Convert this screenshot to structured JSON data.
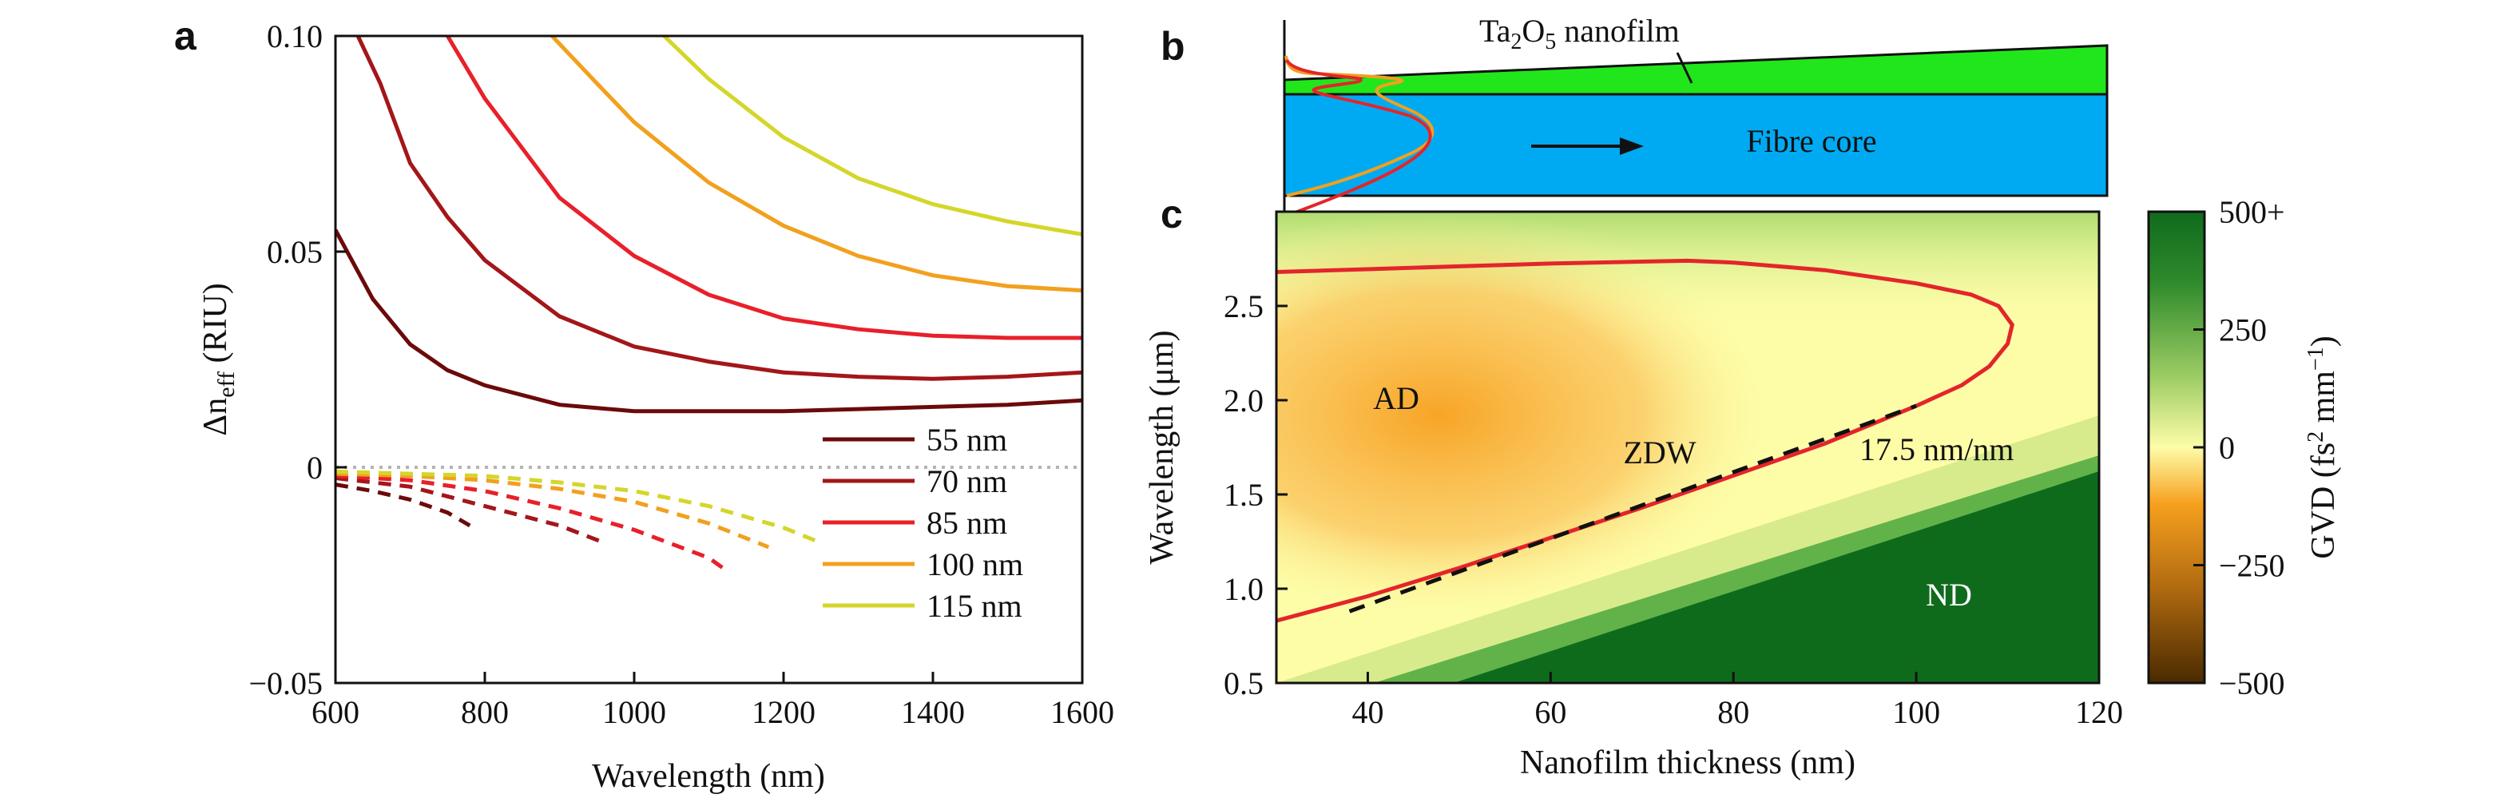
{
  "panels": {
    "a": "a",
    "b": "b",
    "c": "c"
  },
  "colors": {
    "c55": "#6b0a0a",
    "c70": "#a3161a",
    "c85": "#e8202a",
    "c100": "#f2a01e",
    "c115": "#d4d62a",
    "zero_line": "#b4b4b4",
    "nanofilm": "#22e61c",
    "fibre_core": "#00aaf2",
    "zdw": "#e3252b",
    "fit_line": "#111111",
    "gvd_positive": "#0f6b1c",
    "gvd_zero": "#fdfda8",
    "gvd_negative": "#f7a01f"
  },
  "chart_data": [
    {
      "id": "a",
      "type": "line",
      "xlabel": "Wavelength (nm)",
      "ylabel_main": "Δn",
      "ylabel_sub": "eff",
      "ylabel_tail": " (RIU)",
      "xlim": [
        600,
        1600
      ],
      "ylim": [
        -0.05,
        0.1
      ],
      "xticks": [
        "600",
        "800",
        "1000",
        "1200",
        "1400",
        "1600"
      ],
      "xtick_values": [
        600,
        800,
        1000,
        1200,
        1400,
        1600
      ],
      "yticks": [
        "−0.05",
        "0",
        "0.05",
        "0.10"
      ],
      "ytick_values": [
        -0.05,
        0,
        0.05,
        0.1
      ],
      "zero_line": true,
      "grid": false,
      "legend_position": "bottom-right",
      "series": [
        {
          "name": "55 nm",
          "color_key": "c55",
          "solid": [
            [
              600,
              0.055
            ],
            [
              650,
              0.039
            ],
            [
              700,
              0.0285
            ],
            [
              750,
              0.0225
            ],
            [
              800,
              0.019
            ],
            [
              900,
              0.0145
            ],
            [
              1000,
              0.013
            ],
            [
              1100,
              0.013
            ],
            [
              1200,
              0.013
            ],
            [
              1300,
              0.0135
            ],
            [
              1400,
              0.014
            ],
            [
              1500,
              0.0145
            ],
            [
              1600,
              0.0155
            ]
          ],
          "dashed": [
            [
              600,
              -0.004
            ],
            [
              650,
              -0.0055
            ],
            [
              700,
              -0.0075
            ],
            [
              750,
              -0.0105
            ],
            [
              780,
              -0.0135
            ]
          ]
        },
        {
          "name": "70 nm",
          "color_key": "c70",
          "solid": [
            [
              630,
              0.1
            ],
            [
              660,
              0.089
            ],
            [
              700,
              0.0705
            ],
            [
              750,
              0.058
            ],
            [
              800,
              0.048
            ],
            [
              900,
              0.035
            ],
            [
              1000,
              0.028
            ],
            [
              1100,
              0.0245
            ],
            [
              1200,
              0.022
            ],
            [
              1300,
              0.021
            ],
            [
              1400,
              0.0205
            ],
            [
              1500,
              0.021
            ],
            [
              1600,
              0.022
            ]
          ],
          "dashed": [
            [
              600,
              -0.0025
            ],
            [
              700,
              -0.0045
            ],
            [
              800,
              -0.009
            ],
            [
              900,
              -0.0135
            ],
            [
              960,
              -0.0175
            ]
          ]
        },
        {
          "name": "85 nm",
          "color_key": "c85",
          "solid": [
            [
              750,
              0.1
            ],
            [
              800,
              0.0855
            ],
            [
              900,
              0.0625
            ],
            [
              1000,
              0.049
            ],
            [
              1100,
              0.04
            ],
            [
              1200,
              0.0345
            ],
            [
              1300,
              0.032
            ],
            [
              1400,
              0.0305
            ],
            [
              1500,
              0.03
            ],
            [
              1600,
              0.03
            ]
          ],
          "dashed": [
            [
              600,
              -0.002
            ],
            [
              700,
              -0.003
            ],
            [
              800,
              -0.0055
            ],
            [
              900,
              -0.0095
            ],
            [
              1000,
              -0.0145
            ],
            [
              1100,
              -0.021
            ],
            [
              1120,
              -0.0235
            ]
          ]
        },
        {
          "name": "100 nm",
          "color_key": "c100",
          "solid": [
            [
              890,
              0.1
            ],
            [
              950,
              0.089
            ],
            [
              1000,
              0.08
            ],
            [
              1100,
              0.066
            ],
            [
              1200,
              0.056
            ],
            [
              1300,
              0.049
            ],
            [
              1400,
              0.0445
            ],
            [
              1500,
              0.042
            ],
            [
              1600,
              0.041
            ]
          ],
          "dashed": [
            [
              600,
              -0.0015
            ],
            [
              700,
              -0.002
            ],
            [
              800,
              -0.003
            ],
            [
              900,
              -0.005
            ],
            [
              1000,
              -0.008
            ],
            [
              1100,
              -0.013
            ],
            [
              1180,
              -0.0185
            ]
          ]
        },
        {
          "name": "115 nm",
          "color_key": "c115",
          "solid": [
            [
              1040,
              0.1
            ],
            [
              1100,
              0.09
            ],
            [
              1200,
              0.0765
            ],
            [
              1300,
              0.067
            ],
            [
              1400,
              0.061
            ],
            [
              1500,
              0.057
            ],
            [
              1600,
              0.054
            ]
          ],
          "dashed": [
            [
              600,
              -0.001
            ],
            [
              700,
              -0.0015
            ],
            [
              800,
              -0.002
            ],
            [
              900,
              -0.0035
            ],
            [
              1000,
              -0.0055
            ],
            [
              1100,
              -0.009
            ],
            [
              1200,
              -0.014
            ],
            [
              1250,
              -0.0175
            ]
          ]
        }
      ]
    },
    {
      "id": "b",
      "type": "diagram",
      "nanofilm_label": "nanofilm",
      "nanofilm_formula_a": "Ta",
      "nanofilm_formula_sub1": "2",
      "nanofilm_formula_b": "O",
      "nanofilm_formula_sub2": "5",
      "core_label": "Fibre core"
    },
    {
      "id": "c",
      "type": "heatmap",
      "xlabel": "Nanofilm thickness (nm)",
      "ylabel": "Wavelength (μm)",
      "xlim": [
        30,
        120
      ],
      "ylim": [
        0.5,
        3.0
      ],
      "xticks": [
        "40",
        "60",
        "80",
        "100",
        "120"
      ],
      "xtick_values": [
        40,
        60,
        80,
        100,
        120
      ],
      "yticks": [
        "0.5",
        "1.0",
        "1.5",
        "2.0",
        "2.5"
      ],
      "ytick_values": [
        0.5,
        1.0,
        1.5,
        2.0,
        2.5
      ],
      "colorbar_label_main": "GVD (fs",
      "colorbar_label_sup1": "2",
      "colorbar_label_mid": " mm",
      "colorbar_label_sup2": "−1",
      "colorbar_label_end": ")",
      "colorbar_ticks": [
        "500+",
        "250",
        "0",
        "−250",
        "−500"
      ],
      "colorbar_tick_values": [
        500,
        250,
        0,
        -250,
        -500
      ],
      "zdw_label": "ZDW",
      "ad_label": "AD",
      "nd_label": "ND",
      "slope_label": "17.5 nm/nm",
      "zdw_curve": [
        [
          30,
          0.83
        ],
        [
          40,
          0.96
        ],
        [
          50,
          1.11
        ],
        [
          60,
          1.27
        ],
        [
          70,
          1.43
        ],
        [
          80,
          1.6
        ],
        [
          90,
          1.77
        ],
        [
          100,
          1.97
        ],
        [
          105,
          2.08
        ],
        [
          108,
          2.18
        ],
        [
          110,
          2.3
        ],
        [
          110.5,
          2.4
        ],
        [
          109,
          2.5
        ],
        [
          106,
          2.56
        ],
        [
          100,
          2.62
        ],
        [
          90,
          2.69
        ],
        [
          80,
          2.73
        ],
        [
          75,
          2.74
        ],
        [
          70,
          2.735
        ],
        [
          60,
          2.725
        ],
        [
          50,
          2.71
        ],
        [
          40,
          2.695
        ],
        [
          30,
          2.68
        ]
      ],
      "fit_line": [
        [
          38,
          0.88
        ],
        [
          100,
          1.97
        ]
      ]
    }
  ]
}
